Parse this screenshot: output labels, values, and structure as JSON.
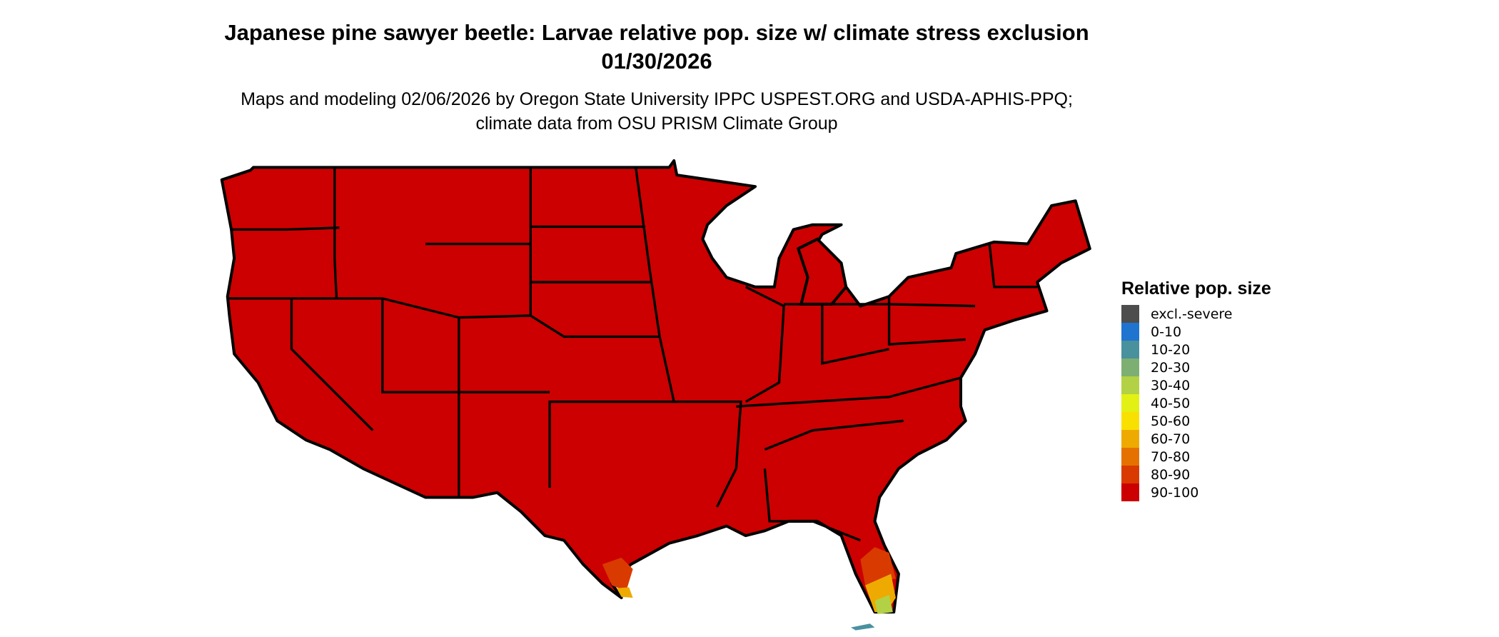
{
  "title": "Japanese pine sawyer beetle: Larvae relative pop. size w/ climate stress exclusion 01/30/2026",
  "subtitle": "Maps and modeling 02/06/2026 by Oregon State University IPPC USPEST.ORG and USDA-APHIS-PPQ; climate data from OSU PRISM Climate Group",
  "legend": {
    "title": "Relative pop. size",
    "items": [
      {
        "label": "excl.-severe",
        "color": "#4d4d4d"
      },
      {
        "label": "0-10",
        "color": "#1f74d0"
      },
      {
        "label": "10-20",
        "color": "#4a919e"
      },
      {
        "label": "20-30",
        "color": "#7eaf72"
      },
      {
        "label": "30-40",
        "color": "#b3d144"
      },
      {
        "label": "40-50",
        "color": "#e2f014"
      },
      {
        "label": "50-60",
        "color": "#f8e000"
      },
      {
        "label": "60-70",
        "color": "#eeaa00"
      },
      {
        "label": "70-80",
        "color": "#e57200"
      },
      {
        "label": "80-90",
        "color": "#d93a00"
      },
      {
        "label": "90-100",
        "color": "#cc0000"
      }
    ]
  },
  "map": {
    "dominant_class": "90-100",
    "region": "Contiguous United States"
  }
}
